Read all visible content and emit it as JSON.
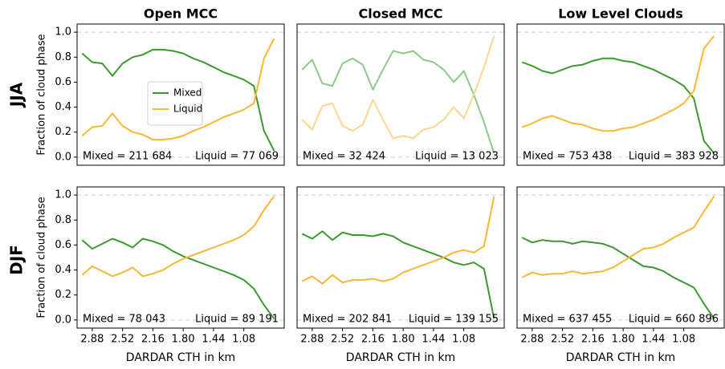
{
  "row_labels": [
    "JJA",
    "DJF"
  ],
  "chart_data": [
    {
      "type": "line",
      "title": "Open MCC",
      "ylabel": "Fraction of cloud phase",
      "legend": "center",
      "x": [
        3.0,
        2.88,
        2.76,
        2.64,
        2.52,
        2.4,
        2.28,
        2.16,
        2.04,
        1.92,
        1.8,
        1.68,
        1.56,
        1.44,
        1.32,
        1.2,
        1.08,
        0.96,
        0.84,
        0.72
      ],
      "series": [
        {
          "name": "Mixed",
          "color": "#3a9a2e",
          "values": [
            0.83,
            0.76,
            0.75,
            0.65,
            0.75,
            0.8,
            0.82,
            0.86,
            0.86,
            0.85,
            0.83,
            0.79,
            0.76,
            0.72,
            0.68,
            0.65,
            0.62,
            0.57,
            0.21,
            0.05
          ]
        },
        {
          "name": "Liquid",
          "color": "#fbb634",
          "values": [
            0.17,
            0.24,
            0.25,
            0.35,
            0.25,
            0.2,
            0.18,
            0.14,
            0.14,
            0.15,
            0.17,
            0.21,
            0.24,
            0.28,
            0.32,
            0.35,
            0.38,
            0.43,
            0.79,
            0.95
          ]
        }
      ],
      "annotations": [
        "Mixed = 211 684",
        "Liquid = 77 069"
      ],
      "xlim": [
        3.06,
        0.6
      ],
      "ylim": [
        -0.065,
        1.065
      ],
      "yticks": [
        {
          "value": 0,
          "label": "0.0"
        },
        0.2,
        0.4,
        0.6,
        0.8,
        {
          "value": 1,
          "label": "1.0"
        }
      ],
      "hlines": [
        0,
        1
      ]
    },
    {
      "type": "line",
      "title": "Closed MCC",
      "x": [
        3.0,
        2.88,
        2.76,
        2.64,
        2.52,
        2.4,
        2.28,
        2.16,
        2.04,
        1.92,
        1.8,
        1.68,
        1.56,
        1.44,
        1.32,
        1.2,
        1.08,
        0.96,
        0.84,
        0.72
      ],
      "series": [
        {
          "name": "Mixed",
          "color": "#8dc987",
          "values": [
            0.7,
            0.78,
            0.59,
            0.57,
            0.75,
            0.79,
            0.74,
            0.54,
            0.7,
            0.85,
            0.83,
            0.85,
            0.78,
            0.76,
            0.7,
            0.6,
            0.69,
            0.5,
            0.28,
            0.03
          ]
        },
        {
          "name": "Liquid",
          "color": "#fdd68c",
          "values": [
            0.3,
            0.22,
            0.41,
            0.43,
            0.25,
            0.21,
            0.26,
            0.46,
            0.3,
            0.15,
            0.17,
            0.15,
            0.22,
            0.24,
            0.3,
            0.4,
            0.31,
            0.5,
            0.72,
            0.97
          ]
        }
      ],
      "annotations": [
        "Mixed = 32 424",
        "Liquid = 13 023"
      ],
      "xlim": [
        3.06,
        0.6
      ],
      "ylim": [
        -0.065,
        1.065
      ],
      "hlines": [
        0,
        1
      ]
    },
    {
      "type": "line",
      "title": "Low Level Clouds",
      "x": [
        3.0,
        2.88,
        2.76,
        2.64,
        2.52,
        2.4,
        2.28,
        2.16,
        2.04,
        1.92,
        1.8,
        1.68,
        1.56,
        1.44,
        1.32,
        1.2,
        1.08,
        0.96,
        0.84,
        0.72
      ],
      "series": [
        {
          "name": "Mixed",
          "color": "#3a9a2e",
          "values": [
            0.76,
            0.73,
            0.69,
            0.67,
            0.7,
            0.73,
            0.74,
            0.77,
            0.79,
            0.79,
            0.77,
            0.76,
            0.73,
            0.7,
            0.66,
            0.62,
            0.57,
            0.47,
            0.13,
            0.03
          ]
        },
        {
          "name": "Liquid",
          "color": "#fbb634",
          "values": [
            0.24,
            0.27,
            0.31,
            0.33,
            0.3,
            0.27,
            0.26,
            0.23,
            0.21,
            0.21,
            0.23,
            0.24,
            0.27,
            0.3,
            0.34,
            0.38,
            0.43,
            0.53,
            0.87,
            0.97
          ]
        }
      ],
      "annotations": [
        "Mixed = 753 438",
        "Liquid = 383 928"
      ],
      "xlim": [
        3.06,
        0.6
      ],
      "ylim": [
        -0.065,
        1.065
      ],
      "hlines": [
        0,
        1
      ]
    },
    {
      "type": "line",
      "ylabel": "Fraction of cloud phase",
      "xlabel": "DARDAR CTH in km",
      "x": [
        3.0,
        2.88,
        2.76,
        2.64,
        2.52,
        2.4,
        2.28,
        2.16,
        2.04,
        1.92,
        1.8,
        1.68,
        1.56,
        1.44,
        1.32,
        1.2,
        1.08,
        0.96,
        0.84,
        0.72
      ],
      "series": [
        {
          "name": "Mixed",
          "color": "#3a9a2e",
          "values": [
            0.64,
            0.57,
            0.61,
            0.65,
            0.62,
            0.58,
            0.65,
            0.63,
            0.6,
            0.55,
            0.51,
            0.48,
            0.45,
            0.42,
            0.39,
            0.36,
            0.32,
            0.25,
            0.12,
            0.01
          ]
        },
        {
          "name": "Liquid",
          "color": "#fbb634",
          "values": [
            0.36,
            0.43,
            0.39,
            0.35,
            0.38,
            0.42,
            0.35,
            0.37,
            0.4,
            0.45,
            0.49,
            0.52,
            0.55,
            0.58,
            0.61,
            0.64,
            0.68,
            0.75,
            0.88,
            0.99
          ]
        }
      ],
      "annotations": [
        "Mixed = 78 043",
        "Liquid = 89 191"
      ],
      "xlim": [
        3.06,
        0.6
      ],
      "ylim": [
        -0.065,
        1.065
      ],
      "yticks": [
        {
          "value": 0,
          "label": "0.0"
        },
        0.2,
        0.4,
        0.6,
        0.8,
        {
          "value": 1,
          "label": "1.0"
        }
      ],
      "xticks": [
        2.88,
        2.52,
        2.16,
        {
          "value": 1.8,
          "label": "1.80"
        },
        1.44,
        1.08
      ],
      "hlines": [
        0,
        1
      ]
    },
    {
      "type": "line",
      "xlabel": "DARDAR CTH in km",
      "x": [
        3.0,
        2.88,
        2.76,
        2.64,
        2.52,
        2.4,
        2.28,
        2.16,
        2.04,
        1.92,
        1.8,
        1.68,
        1.56,
        1.44,
        1.32,
        1.2,
        1.08,
        0.96,
        0.84,
        0.72
      ],
      "series": [
        {
          "name": "Mixed",
          "color": "#3a9a2e",
          "values": [
            0.69,
            0.65,
            0.71,
            0.64,
            0.7,
            0.68,
            0.68,
            0.67,
            0.69,
            0.67,
            0.62,
            0.59,
            0.56,
            0.53,
            0.5,
            0.46,
            0.44,
            0.46,
            0.41,
            0.01
          ]
        },
        {
          "name": "Liquid",
          "color": "#fbb634",
          "values": [
            0.31,
            0.35,
            0.29,
            0.36,
            0.3,
            0.32,
            0.32,
            0.33,
            0.31,
            0.33,
            0.38,
            0.41,
            0.44,
            0.47,
            0.5,
            0.54,
            0.56,
            0.54,
            0.59,
            0.99
          ]
        }
      ],
      "annotations": [
        "Mixed = 202 841",
        "Liquid = 139 155"
      ],
      "xlim": [
        3.06,
        0.6
      ],
      "ylim": [
        -0.065,
        1.065
      ],
      "xticks": [
        2.88,
        2.52,
        2.16,
        {
          "value": 1.8,
          "label": "1.80"
        },
        1.44,
        1.08
      ],
      "hlines": [
        0,
        1
      ]
    },
    {
      "type": "line",
      "xlabel": "DARDAR CTH in km",
      "x": [
        3.0,
        2.88,
        2.76,
        2.64,
        2.52,
        2.4,
        2.28,
        2.16,
        2.04,
        1.92,
        1.8,
        1.68,
        1.56,
        1.44,
        1.32,
        1.2,
        1.08,
        0.96,
        0.84,
        0.72
      ],
      "series": [
        {
          "name": "Mixed",
          "color": "#3a9a2e",
          "values": [
            0.66,
            0.62,
            0.64,
            0.63,
            0.63,
            0.61,
            0.63,
            0.62,
            0.61,
            0.58,
            0.53,
            0.48,
            0.43,
            0.42,
            0.39,
            0.34,
            0.3,
            0.26,
            0.13,
            0.01
          ]
        },
        {
          "name": "Liquid",
          "color": "#fbb634",
          "values": [
            0.34,
            0.38,
            0.36,
            0.37,
            0.37,
            0.39,
            0.37,
            0.38,
            0.39,
            0.42,
            0.47,
            0.52,
            0.57,
            0.58,
            0.61,
            0.66,
            0.7,
            0.74,
            0.87,
            0.99
          ]
        }
      ],
      "annotations": [
        "Mixed = 637 455",
        "Liquid = 660 896"
      ],
      "xlim": [
        3.06,
        0.6
      ],
      "ylim": [
        -0.065,
        1.065
      ],
      "xticks": [
        2.88,
        2.52,
        2.16,
        {
          "value": 1.8,
          "label": "1.80"
        },
        1.44,
        1.08
      ],
      "hlines": [
        0,
        1
      ]
    }
  ]
}
